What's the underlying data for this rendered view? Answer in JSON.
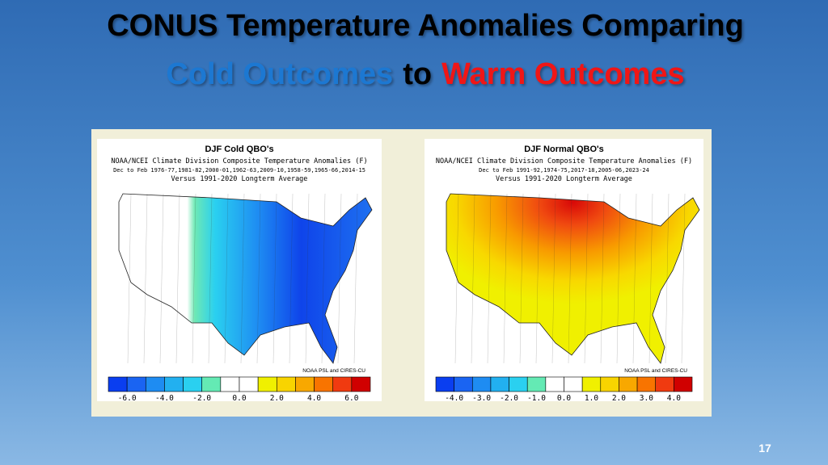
{
  "title": {
    "line1": "CONUS  Temperature Anomalies Comparing",
    "cold": "Cold Outcomes",
    "to": "to",
    "warm": "Warm Outcomes"
  },
  "panels": [
    {
      "title": "DJF Cold QBO's",
      "subtitle": [
        "NOAA/NCEI Climate Division Composite Temperature Anomalies (F)",
        "Dec to Feb  1976-77,1981-82,2000-01,1962-63,2009-10,1958-59,1965-66,2014-15",
        "Versus 1991-2020 Longterm Average"
      ],
      "credit": "NOAA PSL and CIRES-CU",
      "colorbar": [
        "#0a3ef0",
        "#1a64f2",
        "#1e8cf2",
        "#22b0f0",
        "#2ad0f0",
        "#64eab4",
        "#ffffff",
        "#ffffff",
        "#f0f000",
        "#f8d400",
        "#f8a800",
        "#f87400",
        "#f03a10",
        "#d00000"
      ],
      "colorbar_labels": [
        "-6.0",
        "-4.0",
        "-2.0",
        "0.0",
        "2.0",
        "4.0",
        "6.0"
      ]
    },
    {
      "title": "DJF Normal QBO's",
      "subtitle": [
        "NOAA/NCEI Climate Division Composite Temperature Anomalies (F)",
        "Dec to Feb  1991-92,1974-75,2017-18,2005-06,2023-24",
        "Versus 1991-2020 Longterm Average"
      ],
      "credit": "NOAA PSL and CIRES-CU",
      "colorbar": [
        "#0a3ef0",
        "#1a64f2",
        "#1e8cf2",
        "#22b0f0",
        "#2ad0f0",
        "#64eab4",
        "#ffffff",
        "#ffffff",
        "#f0f000",
        "#f8d400",
        "#f8a800",
        "#f87400",
        "#f03a10",
        "#d00000"
      ],
      "colorbar_labels": [
        "-4.0",
        "-3.0",
        "-2.0",
        "-1.0",
        "0.0",
        "1.0",
        "2.0",
        "3.0",
        "4.0"
      ]
    }
  ],
  "page_number": "17"
}
